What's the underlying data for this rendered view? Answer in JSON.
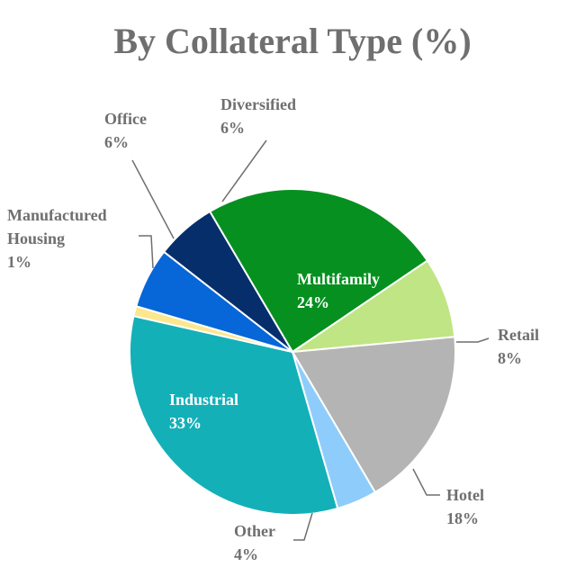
{
  "chart_data": {
    "type": "pie",
    "title": "By Collateral Type (%)",
    "slices": [
      {
        "name": "Multifamily",
        "value": 24,
        "label": "24%",
        "color": "#06901f",
        "label_color": "#ffffff"
      },
      {
        "name": "Retail",
        "value": 8,
        "label": "8%",
        "color": "#c0e584",
        "label_color": "#6f6f6f"
      },
      {
        "name": "Hotel",
        "value": 18,
        "label": "18%",
        "color": "#b4b4b4",
        "label_color": "#6f6f6f"
      },
      {
        "name": "Other",
        "value": 4,
        "label": "4%",
        "color": "#8ecdfb",
        "label_color": "#6f6f6f"
      },
      {
        "name": "Industrial",
        "value": 33,
        "label": "33%",
        "color": "#13b0b8",
        "label_color": "#ffffff"
      },
      {
        "name": "Manufactured Housing",
        "value": 1,
        "label": "1%",
        "color": "#fbe78e",
        "label_color": "#6f6f6f"
      },
      {
        "name": "Office",
        "value": 6,
        "label": "6%",
        "color": "#0766d8",
        "label_color": "#6f6f6f"
      },
      {
        "name": "Diversified",
        "value": 6,
        "label": "6%",
        "color": "#052e6b",
        "label_color": "#6f6f6f"
      }
    ]
  }
}
